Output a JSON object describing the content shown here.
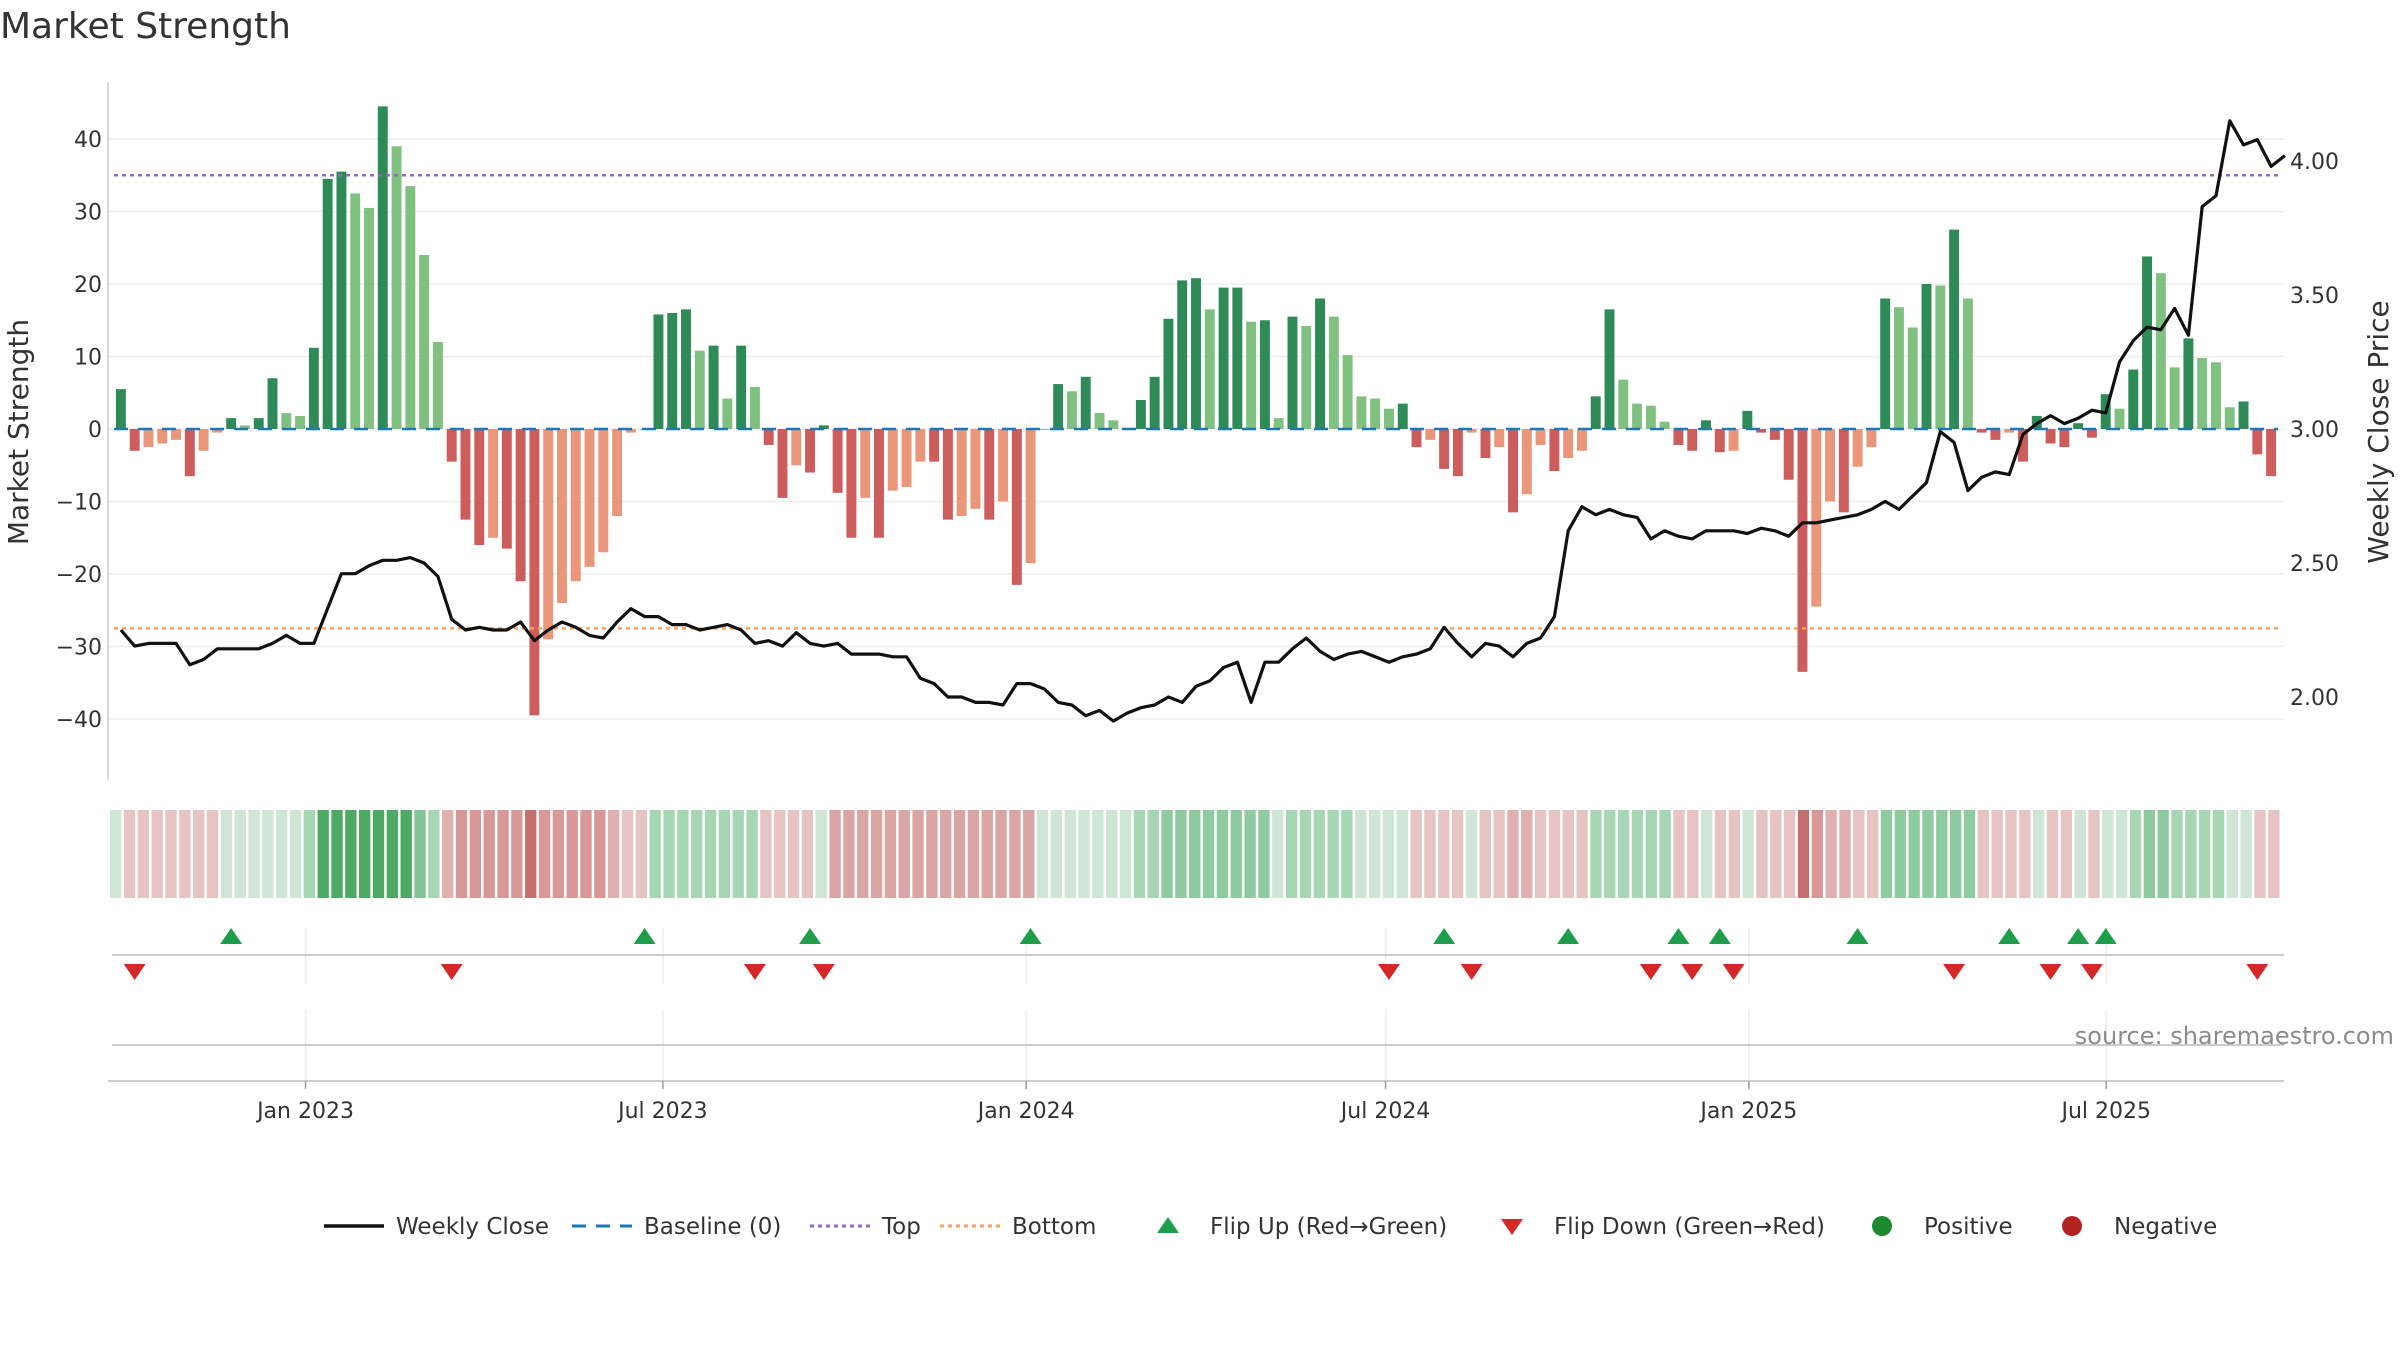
{
  "chart_data": {
    "type": "bar",
    "title": "Market Strength",
    "ylabel": "Market Strength",
    "y2label": "Weekly Close Price",
    "ylim": [
      -48,
      48
    ],
    "y2lim": [
      1.82,
      4.4
    ],
    "yticks": [
      40,
      30,
      20,
      10,
      0,
      -10,
      -20,
      -30,
      -40
    ],
    "y2ticks": [
      2.0,
      2.5,
      3.0,
      3.5,
      4.0
    ],
    "y2tick_labels": [
      "2.00",
      "2.50",
      "3.00",
      "3.50",
      "4.00"
    ],
    "top_line": 35,
    "bottom_line": -27.5,
    "x_start": "2022-09-26",
    "x_end": "2025-09-26",
    "x_ticks": [
      {
        "date": "2023-01-01",
        "label": "Jan 2023"
      },
      {
        "date": "2023-07-01",
        "label": "Jul 2023"
      },
      {
        "date": "2024-01-01",
        "label": "Jan 2024"
      },
      {
        "date": "2024-07-01",
        "label": "Jul 2024"
      },
      {
        "date": "2025-01-01",
        "label": "Jan 2025"
      },
      {
        "date": "2025-07-01",
        "label": "Jul 2025"
      }
    ],
    "strength": [
      5.5,
      -3,
      -2.5,
      -2,
      -1.5,
      -6.5,
      -3,
      -0.5,
      1.5,
      0.5,
      1.5,
      7,
      2.2,
      1.8,
      11.2,
      34.5,
      35.5,
      32.5,
      30.5,
      44.5,
      39,
      33.5,
      24,
      12,
      -4.5,
      -12.5,
      -16,
      -15,
      -16.5,
      -21,
      -39.5,
      -29,
      -24,
      -21,
      -19,
      -17,
      -12,
      -0.5,
      0,
      15.8,
      16,
      16.5,
      10.8,
      11.5,
      4.2,
      11.5,
      5.8,
      -2.2,
      -9.5,
      -5,
      -6,
      0.5,
      -8.8,
      -15,
      -9.5,
      -15,
      -8.5,
      -8,
      -4.5,
      -4.5,
      -12.5,
      -12,
      -11,
      -12.5,
      -10,
      -21.5,
      -18.5,
      0,
      6.2,
      5.2,
      7.2,
      2.2,
      1.2,
      0,
      4,
      7.2,
      15.2,
      20.5,
      20.8,
      16.5,
      19.5,
      19.5,
      14.8,
      15,
      1.5,
      15.5,
      14.2,
      18,
      15.5,
      10.2,
      4.5,
      4.2,
      2.8,
      3.5,
      -2.5,
      -1.5,
      -5.5,
      -6.5,
      -0.5,
      -4,
      -2.5,
      -11.5,
      -9,
      -2.2,
      -5.8,
      -4,
      -3,
      4.5,
      16.5,
      6.8,
      3.5,
      3.2,
      1,
      -2.2,
      -3,
      1.2,
      -3.2,
      -3,
      2.5,
      -0.5,
      -1.5,
      -7,
      -33.5,
      -24.5,
      -10,
      -11.5,
      -5.2,
      -2.5,
      18,
      16.8,
      14,
      20,
      19.8,
      27.5,
      18,
      -0.5,
      -1.5,
      -0.5,
      -4.5,
      1.8,
      -2,
      -2.5,
      0.8,
      -1.2,
      4.8,
      2.8,
      8.2,
      23.8,
      21.5,
      8.5,
      12.5,
      9.8,
      9.2,
      3,
      3.8,
      -3.5,
      -6.5
    ],
    "weekly_close": [
      2.25,
      2.19,
      2.2,
      2.2,
      2.2,
      2.12,
      2.14,
      2.18,
      2.18,
      2.18,
      2.18,
      2.2,
      2.23,
      2.2,
      2.2,
      2.33,
      2.46,
      2.46,
      2.49,
      2.51,
      2.51,
      2.52,
      2.5,
      2.45,
      2.29,
      2.25,
      2.26,
      2.25,
      2.25,
      2.28,
      2.21,
      2.25,
      2.28,
      2.26,
      2.23,
      2.22,
      2.28,
      2.33,
      2.3,
      2.3,
      2.27,
      2.27,
      2.25,
      2.26,
      2.27,
      2.25,
      2.2,
      2.21,
      2.19,
      2.24,
      2.2,
      2.19,
      2.2,
      2.16,
      2.16,
      2.16,
      2.15,
      2.15,
      2.07,
      2.05,
      2.0,
      2.0,
      1.98,
      1.98,
      1.97,
      2.05,
      2.05,
      2.03,
      1.98,
      1.97,
      1.93,
      1.95,
      1.91,
      1.94,
      1.96,
      1.97,
      2.0,
      1.98,
      2.04,
      2.06,
      2.11,
      2.13,
      1.98,
      2.13,
      2.13,
      2.18,
      2.22,
      2.17,
      2.14,
      2.16,
      2.17,
      2.15,
      2.13,
      2.15,
      2.16,
      2.18,
      2.26,
      2.2,
      2.15,
      2.2,
      2.19,
      2.15,
      2.2,
      2.22,
      2.3,
      2.62,
      2.71,
      2.68,
      2.7,
      2.68,
      2.67,
      2.59,
      2.62,
      2.6,
      2.59,
      2.62,
      2.62,
      2.62,
      2.61,
      2.63,
      2.62,
      2.6,
      2.65,
      2.65,
      2.66,
      2.67,
      2.68,
      2.7,
      2.73,
      2.7,
      2.75,
      2.8,
      2.99,
      2.95,
      2.77,
      2.82,
      2.84,
      2.83,
      2.98,
      3.02,
      3.05,
      3.02,
      3.04,
      3.07,
      3.06,
      3.25,
      3.33,
      3.38,
      3.37,
      3.45,
      3.35,
      3.83,
      3.87,
      4.15,
      4.06,
      4.08,
      3.98,
      4.02
    ],
    "band_colors": [
      "#cfe6d6",
      "#e6c4c4",
      "#e6c4c4",
      "#e6c4c4",
      "#e6c4c4",
      "#e6c4c4",
      "#e6c4c4",
      "#e6c4c4",
      "#cfe6d6",
      "#cfe6d6",
      "#cfe6d6",
      "#cfe6d6",
      "#cfe6d6",
      "#cfe6d6",
      "#a7d6b4",
      "#4da964",
      "#4da964",
      "#4da964",
      "#4da964",
      "#4da964",
      "#4da964",
      "#4da964",
      "#83c394",
      "#a7d6b4",
      "#e0b0b0",
      "#d99898",
      "#d99898",
      "#d99898",
      "#d99898",
      "#d99898",
      "#c46e6e",
      "#d99898",
      "#d99898",
      "#d99898",
      "#d99898",
      "#d99898",
      "#e0b0b0",
      "#e6c4c4",
      "#e6c4c4",
      "#a7d6b4",
      "#a7d6b4",
      "#a7d6b4",
      "#a7d6b4",
      "#a7d6b4",
      "#a7d6b4",
      "#a7d6b4",
      "#a7d6b4",
      "#e6c4c4",
      "#e6c4c4",
      "#e6c4c4",
      "#e6c4c4",
      "#cfe6d6",
      "#d9a5a5",
      "#d9a5a5",
      "#d9a5a5",
      "#d9a5a5",
      "#d9a5a5",
      "#d9a5a5",
      "#d9a5a5",
      "#d9a5a5",
      "#d9a5a5",
      "#d9a5a5",
      "#d9a5a5",
      "#d9a5a5",
      "#d9a5a5",
      "#d9a5a5",
      "#d9a5a5",
      "#cfe6d6",
      "#cfe6d6",
      "#cfe6d6",
      "#cfe6d6",
      "#cfe6d6",
      "#cfe6d6",
      "#cfe6d6",
      "#a7d6b4",
      "#a7d6b4",
      "#8fcba0",
      "#8fcba0",
      "#8fcba0",
      "#8fcba0",
      "#8fcba0",
      "#8fcba0",
      "#8fcba0",
      "#8fcba0",
      "#cfe6d6",
      "#a7d6b4",
      "#a7d6b4",
      "#a7d6b4",
      "#a7d6b4",
      "#a7d6b4",
      "#cfe6d6",
      "#cfe6d6",
      "#cfe6d6",
      "#cfe6d6",
      "#e6c4c4",
      "#e6c4c4",
      "#e6c4c4",
      "#e6c4c4",
      "#cfe6d6",
      "#e6c4c4",
      "#e6c4c4",
      "#e0b0b0",
      "#e0b0b0",
      "#e6c4c4",
      "#e6c4c4",
      "#e6c4c4",
      "#e6c4c4",
      "#a7d6b4",
      "#a7d6b4",
      "#a7d6b4",
      "#a7d6b4",
      "#a7d6b4",
      "#a7d6b4",
      "#e6c4c4",
      "#e6c4c4",
      "#cfe6d6",
      "#e6c4c4",
      "#e6c4c4",
      "#cfe6d6",
      "#e6c4c4",
      "#e6c4c4",
      "#e6c4c4",
      "#c46e6e",
      "#d99898",
      "#e0b0b0",
      "#e0b0b0",
      "#e6c4c4",
      "#e6c4c4",
      "#8fcba0",
      "#8fcba0",
      "#8fcba0",
      "#8fcba0",
      "#8fcba0",
      "#8fcba0",
      "#8fcba0",
      "#e6c4c4",
      "#e6c4c4",
      "#e6c4c4",
      "#e6c4c4",
      "#cfe6d6",
      "#e6c4c4",
      "#e6c4c4",
      "#cfe6d6",
      "#e6c4c4",
      "#cfe6d6",
      "#cfe6d6",
      "#a7d6b4",
      "#8fcba0",
      "#8fcba0",
      "#a7d6b4",
      "#a7d6b4",
      "#a7d6b4",
      "#a7d6b4",
      "#cfe6d6",
      "#cfe6d6",
      "#e6c4c4",
      "#e6c4c4"
    ],
    "flip_up_weeks": [
      8,
      38,
      50,
      66,
      96,
      105,
      113,
      116,
      126,
      137,
      142,
      144
    ],
    "flip_down_weeks": [
      1,
      24,
      46,
      51,
      92,
      98,
      111,
      114,
      117,
      133,
      140,
      143,
      155
    ],
    "source": "source: sharemaestro.com",
    "colors": {
      "strong_up": "#2e8b57",
      "weak_up": "#80c080",
      "strong_down": "#cd5c5c",
      "weak_down": "#e9967a",
      "close_line": "#111111",
      "baseline": "#1f77b4",
      "top": "#9467bd",
      "bottom": "#f4a460",
      "flip_up": "#1e9e4a",
      "flip_down": "#d62728",
      "positive": "#1e8a30",
      "negative": "#b22222",
      "grid": "#eeeeee"
    },
    "legend": [
      {
        "label": "Weekly Close",
        "kind": "line",
        "color": "#111111"
      },
      {
        "label": "Baseline (0)",
        "kind": "dash",
        "color": "#1f77b4"
      },
      {
        "label": "Top",
        "kind": "dot",
        "color": "#9467bd"
      },
      {
        "label": "Bottom",
        "kind": "dot",
        "color": "#f4a460"
      },
      {
        "label": "Flip Up (Red→Green)",
        "kind": "tri-up",
        "color": "#1e9e4a"
      },
      {
        "label": "Flip Down (Green→Red)",
        "kind": "tri-down",
        "color": "#d62728"
      },
      {
        "label": "Positive",
        "kind": "circle",
        "color": "#1e8a30"
      },
      {
        "label": "Negative",
        "kind": "circle",
        "color": "#b22222"
      }
    ],
    "legend_position": "bottom-center",
    "grid": true
  }
}
